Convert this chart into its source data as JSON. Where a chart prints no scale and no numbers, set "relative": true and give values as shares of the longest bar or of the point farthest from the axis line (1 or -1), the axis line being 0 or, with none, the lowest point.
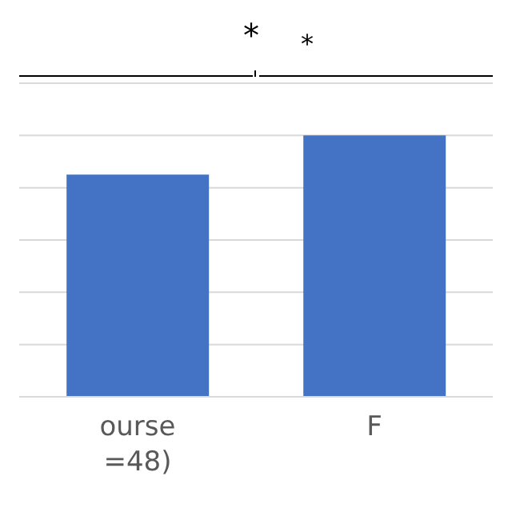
{
  "chart_data": {
    "type": "bar",
    "relative": true,
    "categories": [
      "ourse\n=48)",
      "F"
    ],
    "values": [
      0.85,
      1
    ],
    "color": "#4472c4",
    "grid": "y",
    "annotations": [
      "*",
      "*"
    ]
  }
}
